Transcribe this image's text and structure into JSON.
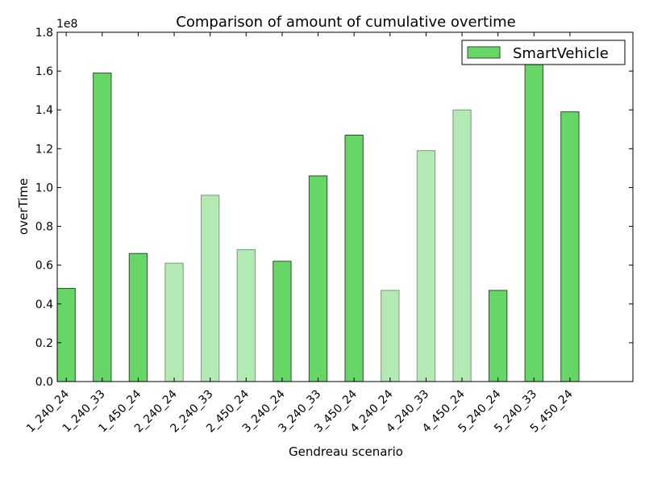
{
  "chart_data": {
    "type": "bar",
    "title": "Comparison of amount of cumulative overtime",
    "xlabel": "Gendreau scenario",
    "ylabel": "overTime",
    "y_scale_label": "1e8",
    "ylim": [
      0,
      1.8
    ],
    "y_multiplier": 100000000,
    "yticks": [
      "0.0",
      "0.2",
      "0.4",
      "0.6",
      "0.8",
      "1.0",
      "1.2",
      "1.4",
      "1.6",
      "1.8"
    ],
    "categories": [
      "1_240_24",
      "1_240_33",
      "1_450_24",
      "2_240_24",
      "2_240_33",
      "2_450_24",
      "3_240_24",
      "3_240_33",
      "3_450_24",
      "4_240_24",
      "4_240_33",
      "4_450_24",
      "5_240_24",
      "5_240_33",
      "5_450_24"
    ],
    "series": [
      {
        "name": "SmartVehicle",
        "values": [
          0.48,
          1.59,
          0.66,
          0.61,
          0.96,
          0.68,
          0.62,
          1.06,
          1.27,
          0.47,
          1.19,
          1.4,
          0.47,
          1.64,
          1.39
        ],
        "faded": [
          false,
          false,
          false,
          true,
          true,
          true,
          false,
          false,
          false,
          true,
          true,
          true,
          false,
          false,
          false
        ]
      }
    ],
    "grid": false,
    "legend_position": "top-right",
    "colors": {
      "bar": "#66d666",
      "bar_faded": "#b3e9b3",
      "bar_edge": "#2f4f2f",
      "bar_edge_faded": "#7a9a7a"
    }
  }
}
